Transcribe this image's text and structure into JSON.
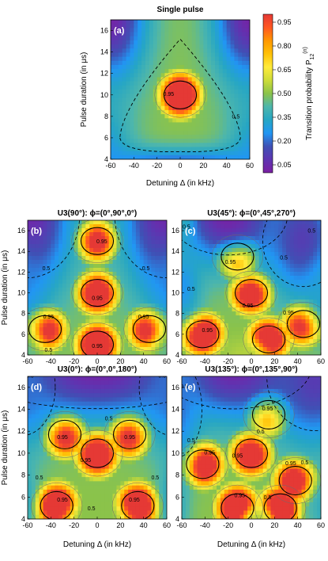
{
  "colormap": [
    "#7b1fa2",
    "#5e35b1",
    "#3f51b5",
    "#2196f3",
    "#26a6c4",
    "#4db6ac",
    "#8bc34a",
    "#cddc39",
    "#ffeb3b",
    "#ffc107",
    "#ff9800",
    "#ff5722",
    "#e53935"
  ],
  "colorbar": {
    "label": "Transition probability P",
    "label_sub": "12",
    "label_sup": "(n)",
    "ticks": [
      "0.95",
      "0.80",
      "0.65",
      "0.50",
      "0.35",
      "0.20",
      "0.05"
    ],
    "tick_values": [
      0.95,
      0.8,
      0.65,
      0.5,
      0.35,
      0.2,
      0.05
    ]
  },
  "chart_data": [
    {
      "type": "heatmap",
      "panel": "(a)",
      "title": "Single pulse",
      "xlabel": "Detuning Δ (in kHz)",
      "ylabel": "Pulse duration (in μs)",
      "xlim": [
        -60,
        60
      ],
      "ylim": [
        4,
        17
      ],
      "xticks": [
        "-60",
        "-40",
        "-20",
        "0",
        "20",
        "40",
        "60"
      ],
      "yticks": [
        "4",
        "6",
        "8",
        "10",
        "12",
        "14",
        "16"
      ],
      "contour_labels": [
        {
          "text": "0.95",
          "x": -10,
          "y": 9.9
        },
        {
          "text": "0.5",
          "x": 48,
          "y": 7.8
        }
      ],
      "peaks": [
        {
          "x": 0,
          "y": 10,
          "value": 0.98
        }
      ]
    },
    {
      "type": "heatmap",
      "panel": "(b)",
      "title": "U3(90°): ϕ=(0°,90°,0°)",
      "xlabel": "",
      "ylabel": "Pulse duration (in μs)",
      "xlim": [
        -60,
        60
      ],
      "ylim": [
        4,
        17
      ],
      "xticks": [
        "-60",
        "-40",
        "-20",
        "0",
        "20",
        "40",
        "60"
      ],
      "yticks": [
        "4",
        "6",
        "8",
        "10",
        "12",
        "14",
        "16"
      ],
      "contour_labels": [
        {
          "text": "0.95",
          "x": 4,
          "y": 14.8
        },
        {
          "text": "0.95",
          "x": 0,
          "y": 9.3
        },
        {
          "text": "0.95",
          "x": -42,
          "y": 7.5
        },
        {
          "text": "0.95",
          "x": 40,
          "y": 7.5
        },
        {
          "text": "0.95",
          "x": 0,
          "y": 4.7
        },
        {
          "text": "0.5",
          "x": -44,
          "y": 12.2
        },
        {
          "text": "0.5",
          "x": 42,
          "y": 12.2
        },
        {
          "text": "0.5",
          "x": -42,
          "y": 4.3
        }
      ],
      "peaks": [
        {
          "x": 0,
          "y": 10,
          "value": 0.98
        },
        {
          "x": 0,
          "y": 15,
          "value": 0.97
        },
        {
          "x": 0,
          "y": 5,
          "value": 0.97
        },
        {
          "x": -45,
          "y": 6.5,
          "value": 0.97
        },
        {
          "x": 45,
          "y": 6.5,
          "value": 0.97
        }
      ]
    },
    {
      "type": "heatmap",
      "panel": "(c)",
      "title": "U3(45°): ϕ=(0°,45°,270°)",
      "xlabel": "",
      "ylabel": "",
      "xlim": [
        -60,
        60
      ],
      "ylim": [
        4,
        17
      ],
      "xticks": [
        "-60",
        "-40",
        "-20",
        "0",
        "20",
        "40",
        "60"
      ],
      "yticks": [
        "4",
        "6",
        "8",
        "10",
        "12",
        "14",
        "16"
      ],
      "contour_labels": [
        {
          "text": "0.95",
          "x": -18,
          "y": 12.8
        },
        {
          "text": "0.95",
          "x": -3,
          "y": 8.6
        },
        {
          "text": "0.95",
          "x": 32,
          "y": 7.9
        },
        {
          "text": "0.95",
          "x": -38,
          "y": 6.2
        },
        {
          "text": "0.5",
          "x": 28,
          "y": 13.2
        },
        {
          "text": "0.5",
          "x": 52,
          "y": 15.8
        },
        {
          "text": "0.5",
          "x": -56,
          "y": 16.2
        },
        {
          "text": "0.5",
          "x": -52,
          "y": 10.2
        }
      ],
      "peaks": [
        {
          "x": -12,
          "y": 13.5,
          "value": 0.97
        },
        {
          "x": 0,
          "y": 10,
          "value": 0.98
        },
        {
          "x": 45,
          "y": 7,
          "value": 0.97
        },
        {
          "x": -42,
          "y": 6,
          "value": 0.97
        },
        {
          "x": 15,
          "y": 5.5,
          "value": 0.97
        }
      ]
    },
    {
      "type": "heatmap",
      "panel": "(d)",
      "title": "U3(0°): ϕ=(0°,0°,180°)",
      "xlabel": "Detuning Δ (in kHz)",
      "ylabel": "Pulse duration (in μs)",
      "xlim": [
        -60,
        60
      ],
      "ylim": [
        4,
        17
      ],
      "xticks": [
        "-60",
        "-40",
        "-20",
        "0",
        "20",
        "40",
        "60"
      ],
      "yticks": [
        "4",
        "6",
        "8",
        "10",
        "12",
        "14",
        "16"
      ],
      "contour_labels": [
        {
          "text": "0.95",
          "x": -30,
          "y": 11.3
        },
        {
          "text": "0.95",
          "x": 28,
          "y": 11.3
        },
        {
          "text": "0.95",
          "x": -10,
          "y": 9.2
        },
        {
          "text": "0.95",
          "x": -30,
          "y": 5.6
        },
        {
          "text": "0.95",
          "x": 32,
          "y": 5.6
        },
        {
          "text": "0.5",
          "x": 10,
          "y": 13.0
        },
        {
          "text": "0.5",
          "x": -50,
          "y": 7.6
        },
        {
          "text": "0.5",
          "x": 50,
          "y": 7.6
        },
        {
          "text": "0.5",
          "x": -5,
          "y": 4.8
        },
        {
          "text": "0.5",
          "x": -58,
          "y": 16.9
        },
        {
          "text": "0.5",
          "x": 56,
          "y": 16.9
        }
      ],
      "peaks": [
        {
          "x": 0,
          "y": 10,
          "value": 0.98
        },
        {
          "x": -28,
          "y": 11.7,
          "value": 0.97
        },
        {
          "x": 28,
          "y": 11.7,
          "value": 0.97
        },
        {
          "x": -35,
          "y": 5.2,
          "value": 0.97
        },
        {
          "x": 35,
          "y": 5.2,
          "value": 0.97
        }
      ]
    },
    {
      "type": "heatmap",
      "panel": "(e)",
      "title": "U3(135°): ϕ=(0°,135°,90°)",
      "xlabel": "Detuning Δ (in kHz)",
      "ylabel": "",
      "xlim": [
        -60,
        60
      ],
      "ylim": [
        4,
        17
      ],
      "xticks": [
        "-60",
        "-40",
        "-20",
        "0",
        "20",
        "40",
        "60"
      ],
      "yticks": [
        "4",
        "6",
        "8",
        "10",
        "12",
        "14",
        "16"
      ],
      "contour_labels": [
        {
          "text": "0.95",
          "x": 14,
          "y": 13.9
        },
        {
          "text": "0.95",
          "x": -36,
          "y": 9.9
        },
        {
          "text": "0.95",
          "x": -12,
          "y": 9.6
        },
        {
          "text": "0.95",
          "x": 34,
          "y": 8.9
        },
        {
          "text": "0.95",
          "x": -10,
          "y": 6.0
        },
        {
          "text": "0.5",
          "x": 8,
          "y": 11.8
        },
        {
          "text": "0.5",
          "x": 46,
          "y": 9.0
        },
        {
          "text": "0.5",
          "x": 14,
          "y": 5.8
        },
        {
          "text": "0.5",
          "x": -58,
          "y": 15.9
        },
        {
          "text": "0.5",
          "x": -52,
          "y": 11.0
        }
      ],
      "peaks": [
        {
          "x": 15,
          "y": 13.5,
          "value": 0.97
        },
        {
          "x": 0,
          "y": 10,
          "value": 0.98
        },
        {
          "x": -42,
          "y": 9,
          "value": 0.97
        },
        {
          "x": 38,
          "y": 7.5,
          "value": 0.97
        },
        {
          "x": -12,
          "y": 5,
          "value": 0.97
        },
        {
          "x": 25,
          "y": 5,
          "value": 0.97
        }
      ]
    }
  ]
}
